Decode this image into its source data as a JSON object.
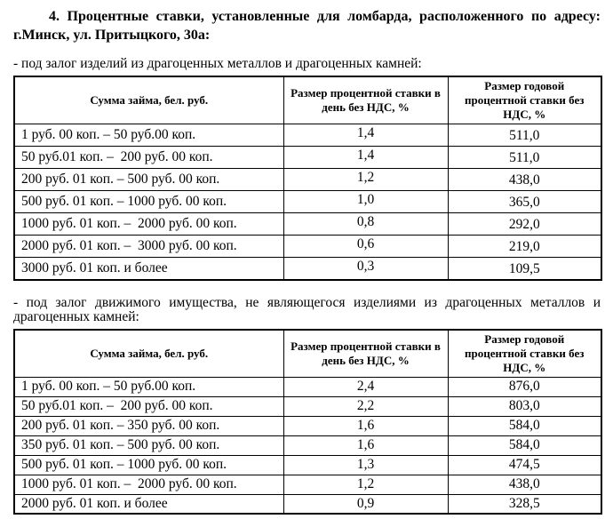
{
  "colors": {
    "text": "#000000",
    "background": "#ffffff",
    "table_border": "#000000"
  },
  "document": {
    "title_lines": [
      "4. Процентные ставки, установленные для ломбарда, расположенного по адресу:",
      "г.Минск, ул. Притыцкого, 30а:"
    ],
    "sections": [
      {
        "name": "precious-metals-pledge",
        "caption": "- под залог изделий из драгоценных металлов и драгоценных камней:",
        "table": {
          "headers": [
            "Сумма займа, бел. руб.",
            "Размер процентной ставки в день без НДС, %",
            "Размер годовой процентной ставки без НДС, %"
          ],
          "rows": [
            [
              "1 руб. 00 коп. – 50 руб.00 коп.",
              "1,4",
              "511,0"
            ],
            [
              "50 руб.01 коп. –  200 руб. 00 коп.",
              "1,4",
              "511,0"
            ],
            [
              "200 руб. 01 коп. – 500 руб. 00 коп.",
              "1,2",
              "438,0"
            ],
            [
              "500 руб. 01 коп. – 1000 руб. 00 коп.",
              "1,0",
              "365,0"
            ],
            [
              "1000 руб. 01 коп. –  2000 руб. 00 коп.",
              "0,8",
              "292,0"
            ],
            [
              "2000 руб. 01 коп. –  3000 руб. 00 коп.",
              "0,6",
              "219,0"
            ],
            [
              "3000 руб. 01 коп. и более",
              "0,3",
              "109,5"
            ]
          ]
        }
      },
      {
        "name": "movable-property-pledge",
        "caption_lines": [
          "- под залог движимого имущества, не являющегося изделиями из драгоценных металлов и",
          "драгоценных камней:"
        ],
        "table": {
          "headers": [
            "Сумма займа, бел. руб.",
            "Размер процентной ставки в день без НДС, %",
            "Размер годовой процентной ставки без НДС, %"
          ],
          "rows": [
            [
              "1 руб. 00 коп. – 50 руб.00 коп.",
              "2,4",
              "876,0"
            ],
            [
              "50 руб.01 коп. –  200 руб. 00 коп.",
              "2,2",
              "803,0"
            ],
            [
              "200 руб. 01 коп. – 350 руб. 00 коп.",
              "1,6",
              "584,0"
            ],
            [
              "350 руб. 01 коп. – 500 руб. 00 коп.",
              "1,6",
              "584,0"
            ],
            [
              "500 руб. 01 коп. – 1000 руб. 00 коп.",
              "1,3",
              "474,5"
            ],
            [
              "1000 руб. 01 коп. –  2000 руб. 00 коп.",
              "1,2",
              "438,0"
            ],
            [
              "2000 руб. 01 коп. и более",
              "0,9",
              "328,5"
            ]
          ]
        }
      }
    ]
  }
}
